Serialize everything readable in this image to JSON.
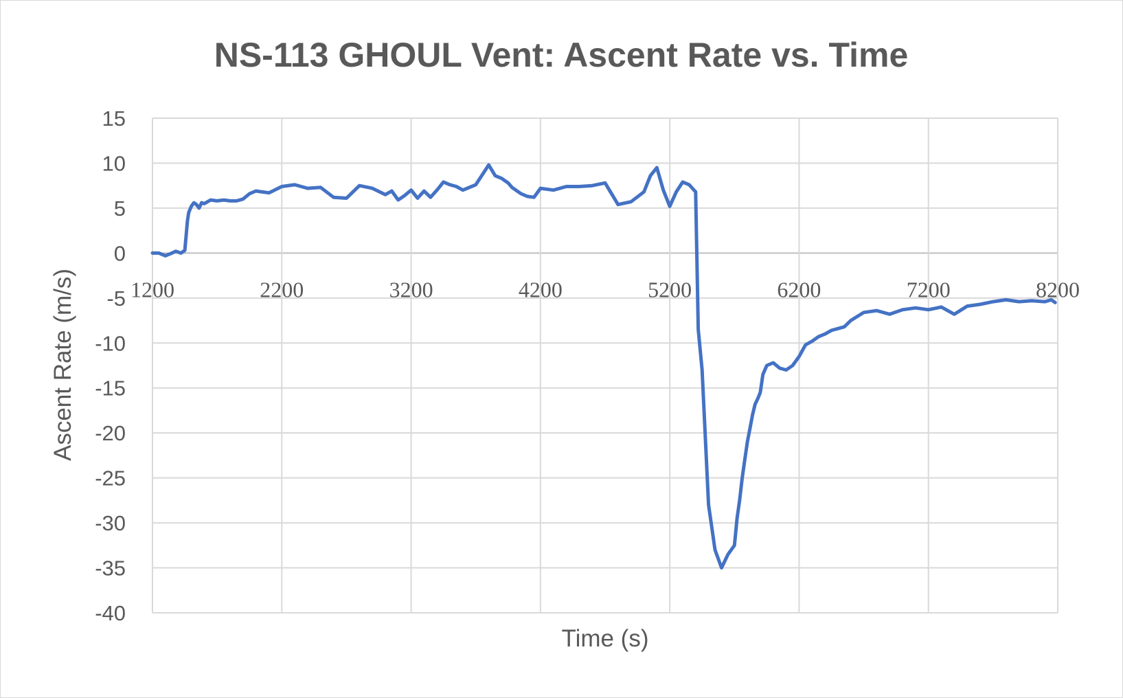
{
  "chart_data": {
    "type": "scatter",
    "title": "NS-113 GHOUL Vent: Ascent Rate vs. Time",
    "xlabel": "Time (s)",
    "ylabel": "Ascent Rate (m/s)",
    "xlim": [
      1200,
      8200
    ],
    "ylim": [
      -40,
      15
    ],
    "x_ticks": [
      "1200",
      "2200",
      "3200",
      "4200",
      "5200",
      "6200",
      "7200",
      "8200"
    ],
    "y_ticks": [
      "15",
      "10",
      "5",
      "0",
      "-5",
      "-10",
      "-15",
      "-20",
      "-25",
      "-30",
      "-35",
      "-40"
    ],
    "x_tick_values": [
      1200,
      2200,
      3200,
      4200,
      5200,
      6200,
      7200,
      8200
    ],
    "y_tick_values": [
      15,
      10,
      5,
      0,
      -5,
      -10,
      -15,
      -20,
      -25,
      -30,
      -35,
      -40
    ],
    "grid": true,
    "legend": "none",
    "line_color": "#4472c4",
    "grid_color": "#d9d9d9",
    "series": [
      {
        "x": [
          1200,
          1250,
          1300,
          1350,
          1380,
          1420,
          1450,
          1470,
          1480,
          1500,
          1520,
          1540,
          1560,
          1580,
          1600,
          1650,
          1700,
          1750,
          1800,
          1850,
          1900,
          1950,
          2000,
          2100,
          2200,
          2300,
          2400,
          2500,
          2600,
          2700,
          2800,
          2900,
          3000,
          3050,
          3100,
          3150,
          3200,
          3250,
          3300,
          3350,
          3400,
          3450,
          3500,
          3550,
          3600,
          3700,
          3800,
          3850,
          3900,
          3950,
          3980,
          4000,
          4050,
          4100,
          4150,
          4200,
          4300,
          4400,
          4500,
          4600,
          4700,
          4800,
          4900,
          5000,
          5050,
          5100,
          5150,
          5200,
          5250,
          5300,
          5350,
          5400,
          5420,
          5450,
          5500,
          5550,
          5600,
          5650,
          5700,
          5720,
          5740,
          5760,
          5780,
          5800,
          5820,
          5840,
          5860,
          5880,
          5900,
          5920,
          5950,
          6000,
          6050,
          6100,
          6150,
          6200,
          6250,
          6300,
          6350,
          6400,
          6450,
          6500,
          6550,
          6600,
          6700,
          6800,
          6900,
          7000,
          7100,
          7200,
          7300,
          7400,
          7500,
          7600,
          7700,
          7800,
          7900,
          8000,
          8100,
          8150,
          8180
        ],
        "y": [
          0,
          0,
          -0.3,
          0,
          0.2,
          0,
          0.3,
          3.5,
          4.5,
          5.2,
          5.6,
          5.4,
          5.0,
          5.6,
          5.5,
          5.9,
          5.8,
          5.9,
          5.8,
          5.8,
          6.0,
          6.6,
          6.9,
          6.7,
          7.4,
          7.6,
          7.2,
          7.3,
          6.2,
          6.1,
          7.5,
          7.2,
          6.5,
          6.9,
          5.9,
          6.4,
          7.0,
          6.1,
          6.9,
          6.2,
          7.0,
          7.9,
          7.6,
          7.4,
          7.0,
          7.6,
          9.8,
          8.6,
          8.3,
          7.8,
          7.3,
          7.1,
          6.6,
          6.3,
          6.2,
          7.2,
          7.0,
          7.4,
          7.4,
          7.5,
          7.8,
          5.4,
          5.7,
          6.8,
          8.6,
          9.5,
          7.0,
          5.2,
          6.8,
          7.9,
          7.6,
          6.8,
          -8.5,
          -13.0,
          -28.0,
          -33.0,
          -35.0,
          -33.5,
          -32.5,
          -29.5,
          -27.5,
          -25.0,
          -23.0,
          -21.0,
          -19.5,
          -18.0,
          -16.8,
          -16.2,
          -15.5,
          -13.5,
          -12.5,
          -12.2,
          -12.8,
          -13.0,
          -12.5,
          -11.5,
          -10.2,
          -9.8,
          -9.3,
          -9.0,
          -8.6,
          -8.4,
          -8.2,
          -7.5,
          -6.6,
          -6.4,
          -6.8,
          -6.3,
          -6.1,
          -6.3,
          -6.0,
          -6.8,
          -5.9,
          -5.7,
          -5.4,
          -5.2,
          -5.4,
          -5.3,
          -5.4,
          -5.2,
          -5.5
        ]
      }
    ]
  }
}
